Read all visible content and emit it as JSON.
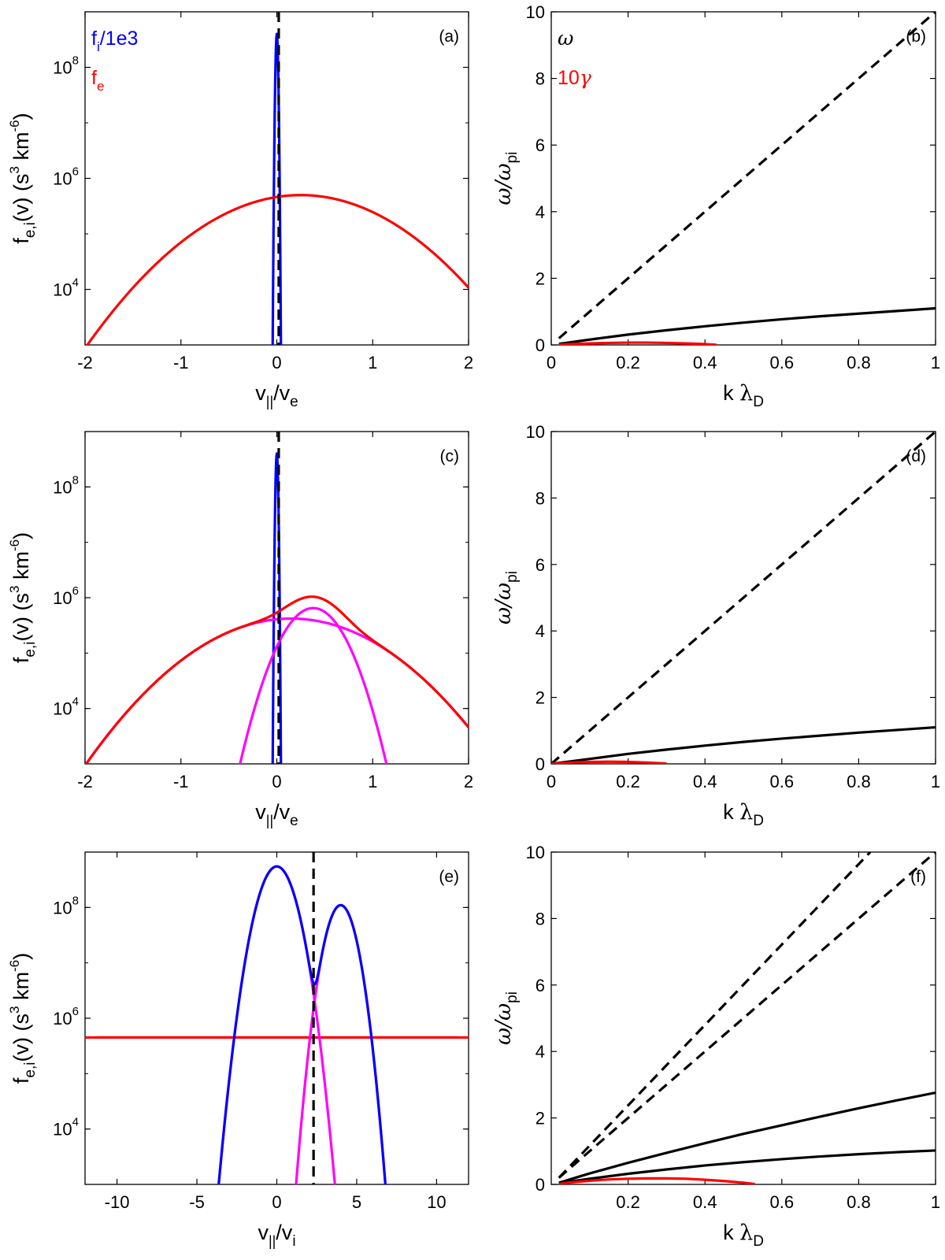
{
  "chart_data": [
    {
      "type": "line",
      "yscale": "log",
      "panel_label": "(a)",
      "xlabel": "v||/ve",
      "ylabel": "fe,i(v) (s3 km-6)",
      "xlim": [
        -2,
        2
      ],
      "ylim": [
        1000,
        1000000000.0
      ],
      "xticks": [
        "-2",
        "-1",
        "0",
        "1",
        "2"
      ],
      "yticks": [
        "10^4",
        "10^6",
        "10^8"
      ],
      "legend": [
        {
          "label": "fi/1e3",
          "color": "#0000ff"
        },
        {
          "label": "fe",
          "color": "#ff0000"
        }
      ],
      "series": [
        {
          "label": "fi/1e3",
          "color": "#0000ff",
          "kind": "gaussian",
          "amp": 400000000.0,
          "center": 0.0,
          "width": 0.012
        },
        {
          "label": "fe",
          "color": "#ff0000",
          "kind": "gaussian",
          "amp": 500000,
          "center": 0.25,
          "width": 0.893
        }
      ],
      "vlines": [
        {
          "x": 0.02,
          "style": "dashed",
          "color": "#000000"
        }
      ]
    },
    {
      "type": "line",
      "panel_label": "(b)",
      "xlabel": "k λD",
      "ylabel": "ω/ωpi",
      "xlim": [
        0,
        1
      ],
      "ylim": [
        0,
        10
      ],
      "xticks": [
        "0",
        "0.2",
        "0.4",
        "0.6",
        "0.8",
        "1"
      ],
      "yticks": [
        "0",
        "2",
        "4",
        "6",
        "8",
        "10"
      ],
      "legend": [
        {
          "label": "ω",
          "color": "#000000"
        },
        {
          "label": "10γ",
          "color": "#ff0000"
        }
      ],
      "series": [
        {
          "name": "ω",
          "style": "dashed",
          "color": "#000000",
          "x": [
            0.02,
            1.0
          ],
          "y": [
            0.2,
            10.0
          ]
        },
        {
          "name": "ω",
          "style": "solid",
          "color": "#000000",
          "x": [
            0.02,
            0.1,
            0.2,
            0.3,
            0.4,
            0.5,
            0.6,
            0.7,
            0.8,
            0.9,
            1.0
          ],
          "y": [
            0.03,
            0.16,
            0.31,
            0.44,
            0.56,
            0.67,
            0.77,
            0.86,
            0.94,
            1.02,
            1.1
          ]
        },
        {
          "name": "10γ",
          "style": "solid",
          "color": "#ff0000",
          "x": [
            0.02,
            0.05,
            0.1,
            0.15,
            0.2,
            0.25,
            0.3,
            0.35,
            0.4,
            0.43
          ],
          "y": [
            0.005,
            0.025,
            0.045,
            0.06,
            0.07,
            0.07,
            0.06,
            0.045,
            0.025,
            0.005
          ]
        }
      ]
    },
    {
      "type": "line",
      "yscale": "log",
      "panel_label": "(c)",
      "xlabel": "v||/ve",
      "ylabel": "fe,i(v) (s3 km-6)",
      "xlim": [
        -2,
        2
      ],
      "ylim": [
        1000,
        1000000000.0
      ],
      "xticks": [
        "-2",
        "-1",
        "0",
        "1",
        "2"
      ],
      "yticks": [
        "10^4",
        "10^6",
        "10^8"
      ],
      "series": [
        {
          "color": "#0000ff",
          "kind": "gaussian",
          "amp": 400000000.0,
          "center": 0.0,
          "width": 0.012
        },
        {
          "color": "#ff00ff",
          "kind": "gaussian",
          "amp": 420000,
          "center": 0.15,
          "width": 0.87
        },
        {
          "color": "#ff00ff",
          "kind": "gaussian",
          "amp": 650000,
          "center": 0.38,
          "width": 0.3
        },
        {
          "color": "#ff0000",
          "kind": "sum",
          "of": [
            1,
            2
          ]
        }
      ],
      "vlines": [
        {
          "x": 0.02,
          "style": "dashed",
          "color": "#000000"
        }
      ]
    },
    {
      "type": "line",
      "panel_label": "(d)",
      "xlabel": "k λD",
      "ylabel": "ω/ωpi",
      "xlim": [
        0,
        1
      ],
      "ylim": [
        0,
        10
      ],
      "xticks": [
        "0",
        "0.2",
        "0.4",
        "0.6",
        "0.8",
        "1"
      ],
      "yticks": [
        "0",
        "2",
        "4",
        "6",
        "8",
        "10"
      ],
      "series": [
        {
          "style": "dashed",
          "color": "#000000",
          "x": [
            0.0,
            1.0
          ],
          "y": [
            0.0,
            10.0
          ]
        },
        {
          "style": "solid",
          "color": "#000000",
          "x": [
            0.0,
            0.1,
            0.2,
            0.3,
            0.4,
            0.5,
            0.6,
            0.7,
            0.8,
            0.9,
            1.0
          ],
          "y": [
            0.0,
            0.15,
            0.3,
            0.43,
            0.55,
            0.66,
            0.76,
            0.85,
            0.94,
            1.02,
            1.1
          ]
        },
        {
          "style": "solid",
          "color": "#ff0000",
          "x": [
            0.0,
            0.05,
            0.1,
            0.15,
            0.2,
            0.25,
            0.3
          ],
          "y": [
            0.0,
            0.04,
            0.06,
            0.065,
            0.06,
            0.04,
            0.01
          ]
        }
      ]
    },
    {
      "type": "line",
      "yscale": "log",
      "panel_label": "(e)",
      "xlabel": "v||/vi",
      "ylabel": "fe,i(v) (s3 km-6)",
      "xlim": [
        -12,
        12
      ],
      "ylim": [
        1000,
        1000000000.0
      ],
      "xticks": [
        "-10",
        "-5",
        "0",
        "5",
        "10"
      ],
      "yticks": [
        "10^4",
        "10^6",
        "10^8"
      ],
      "series": [
        {
          "color": "#ff0000",
          "kind": "gaussian",
          "amp": 450000,
          "center": 0.0,
          "width": 400
        },
        {
          "color": "#ff00ff",
          "kind": "gaussian",
          "amp": 550000000.0,
          "center": 0.0,
          "width": 1.0
        },
        {
          "color": "#ff00ff",
          "kind": "gaussian",
          "amp": 110000000.0,
          "center": 4.0,
          "width": 0.82
        },
        {
          "color": "#0000ff",
          "kind": "sum",
          "of": [
            1,
            2
          ]
        }
      ],
      "vlines": [
        {
          "x": 2.3,
          "style": "dashed",
          "color": "#000000"
        }
      ]
    },
    {
      "type": "line",
      "panel_label": "(f)",
      "xlabel": "k λD",
      "ylabel": "ω/ωpi",
      "xlim": [
        0,
        1
      ],
      "ylim": [
        0,
        10
      ],
      "xticks": [
        "0.2",
        "0.4",
        "0.6",
        "0.8",
        "1"
      ],
      "yticks": [
        "0",
        "2",
        "4",
        "6",
        "8",
        "10"
      ],
      "series": [
        {
          "style": "dashed",
          "color": "#000000",
          "x": [
            0.02,
            0.83
          ],
          "y": [
            0.2,
            10.0
          ]
        },
        {
          "style": "dashed",
          "color": "#000000",
          "x": [
            0.02,
            1.0
          ],
          "y": [
            0.2,
            10.0
          ]
        },
        {
          "style": "solid",
          "color": "#000000",
          "x": [
            0.02,
            0.1,
            0.2,
            0.3,
            0.4,
            0.5,
            0.6,
            0.7,
            0.8,
            0.9,
            1.0
          ],
          "y": [
            0.05,
            0.33,
            0.65,
            0.95,
            1.24,
            1.52,
            1.78,
            2.04,
            2.29,
            2.53,
            2.76
          ]
        },
        {
          "style": "solid",
          "color": "#000000",
          "x": [
            0.02,
            0.1,
            0.2,
            0.3,
            0.4,
            0.5,
            0.6,
            0.7,
            0.8,
            0.9,
            1.0
          ],
          "y": [
            0.04,
            0.17,
            0.32,
            0.45,
            0.57,
            0.67,
            0.76,
            0.84,
            0.91,
            0.97,
            1.02
          ]
        },
        {
          "style": "solid",
          "color": "#ff0000",
          "x": [
            0.02,
            0.05,
            0.1,
            0.15,
            0.2,
            0.25,
            0.3,
            0.35,
            0.4,
            0.45,
            0.5,
            0.53
          ],
          "y": [
            0.01,
            0.06,
            0.11,
            0.15,
            0.17,
            0.18,
            0.18,
            0.17,
            0.14,
            0.1,
            0.05,
            0.01
          ]
        }
      ]
    }
  ]
}
